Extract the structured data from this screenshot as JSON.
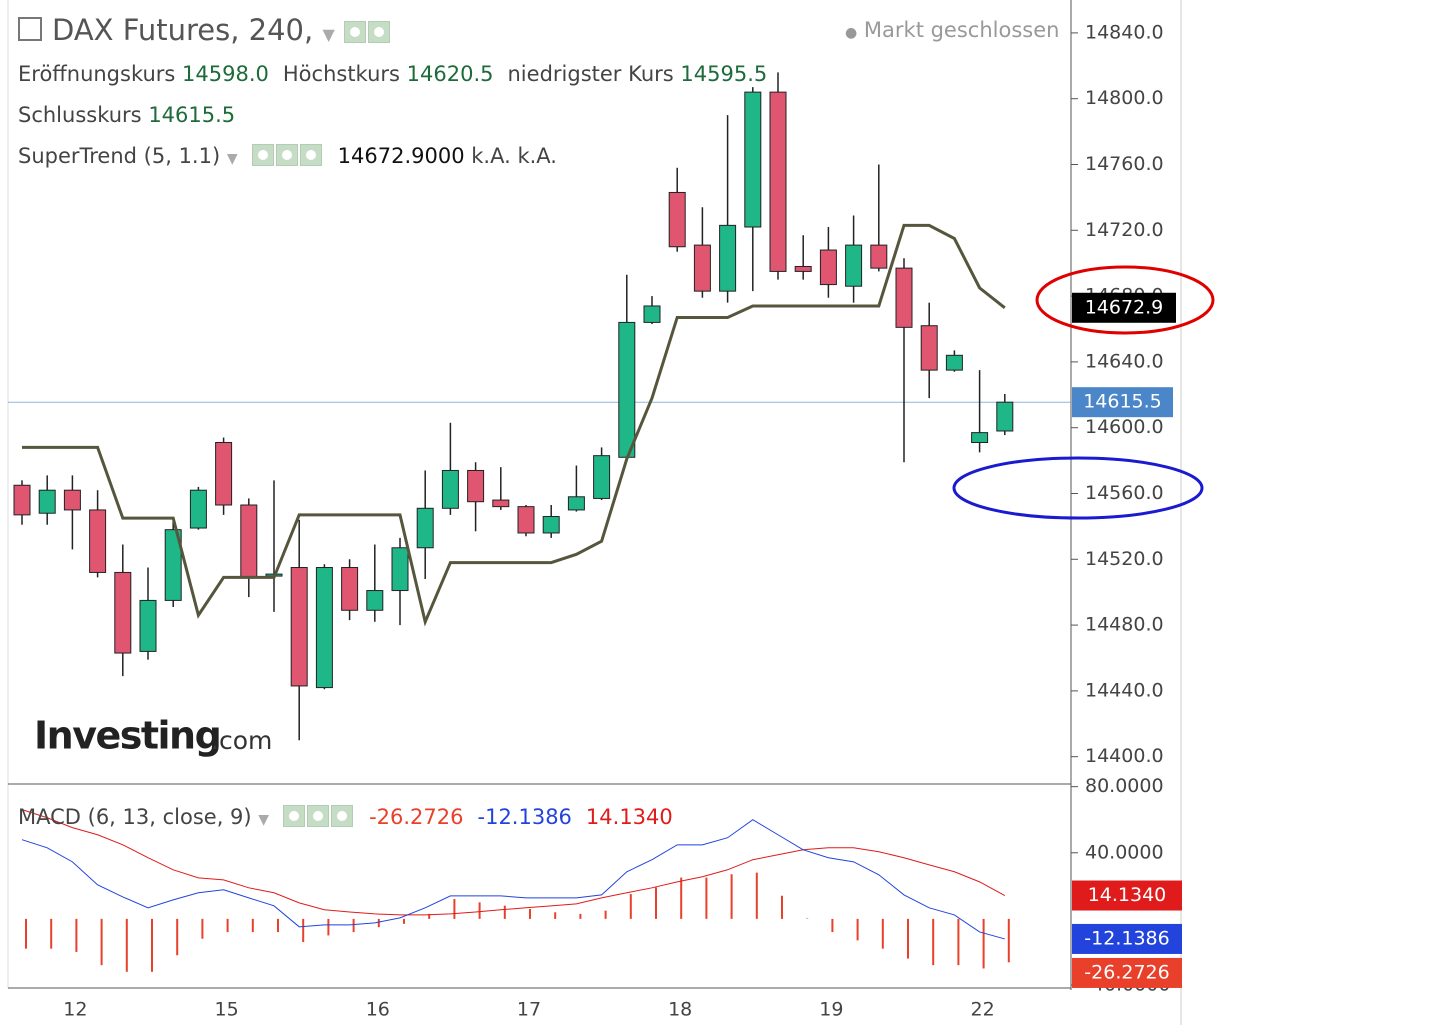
{
  "chart_data": [
    {
      "type": "candlestick",
      "title": "DAX Futures, 240,",
      "status": "Markt geschlossen",
      "ohlc_legend": [
        {
          "label": "Eröffnungskurs",
          "value": "14598.0"
        },
        {
          "label": "Höchstkurs",
          "value": "14620.5"
        },
        {
          "label": "niedrigster Kurs",
          "value": "14595.5"
        },
        {
          "label": "Schlusskurs",
          "value": "14615.5"
        }
      ],
      "categories": [
        null,
        null,
        "12",
        null,
        null,
        null,
        null,
        null,
        "15",
        null,
        null,
        null,
        null,
        null,
        "16",
        null,
        null,
        null,
        null,
        null,
        "17",
        null,
        null,
        null,
        null,
        null,
        "18",
        null,
        null,
        null,
        null,
        null,
        "19",
        null,
        null,
        null,
        null,
        null,
        "22",
        null
      ],
      "open": [
        14565,
        14548,
        14562,
        14550,
        14512,
        14464,
        14495,
        14539,
        14591,
        14553,
        14510,
        14515,
        14442,
        14515,
        14489,
        14501,
        14527,
        14551,
        14574,
        14556,
        14552,
        14536,
        14550,
        14557,
        14582,
        14664,
        14743,
        14711,
        14683,
        14722,
        14804,
        14698,
        14708,
        14686,
        14711,
        14697,
        14662,
        14635,
        14591,
        14598
      ],
      "high": [
        14568,
        14571,
        14571,
        14562,
        14529,
        14515,
        14545,
        14564,
        14594,
        14557,
        14568,
        14544,
        14517,
        14520,
        14529,
        14533,
        14574,
        14603,
        14579,
        14576,
        14553,
        14553,
        14577,
        14588,
        14693,
        14680,
        14758,
        14734,
        14790,
        14807,
        14816,
        14717,
        14722,
        14729,
        14760,
        14703,
        14676,
        14647,
        14635,
        14620.5
      ],
      "low": [
        14541,
        14541,
        14526,
        14509,
        14449,
        14459,
        14491,
        14538,
        14547,
        14497,
        14488,
        14410,
        14441,
        14483,
        14482,
        14480,
        14508,
        14547,
        14537,
        14550,
        14534,
        14533,
        14549,
        14556,
        14580,
        14663,
        14707,
        14679,
        14676,
        14683,
        14690,
        14690,
        14679,
        14676,
        14695,
        14579,
        14618,
        14634,
        14585,
        14595.5
      ],
      "close": [
        14547,
        14562,
        14550,
        14512,
        14463,
        14495,
        14538,
        14562,
        14553,
        14509,
        14511,
        14443,
        14515,
        14489,
        14501,
        14527,
        14551,
        14574,
        14555,
        14552,
        14536,
        14546,
        14558,
        14583,
        14664,
        14674,
        14710,
        14683,
        14723,
        14804,
        14695,
        14695,
        14687,
        14711,
        14697,
        14661,
        14635,
        14644,
        14597,
        14615.5
      ],
      "up_color": "#1fb787",
      "down_color": "#e05570",
      "overlay": {
        "name": "SuperTrend (5, 1.1)",
        "color": "#56563c",
        "values": [
          14588,
          14588,
          14588,
          14588,
          14545,
          14545,
          14545,
          14486,
          14509,
          14509,
          14509,
          14547,
          14547,
          14547,
          14547,
          14547,
          14482,
          14518,
          14518,
          14518,
          14518,
          14518,
          14523,
          14531,
          14581,
          14618,
          14667,
          14667,
          14667,
          14674,
          14674,
          14674,
          14674,
          14674,
          14674,
          14723,
          14723,
          14715,
          14685,
          14672.9
        ],
        "readouts": [
          "14672.9000",
          "k.A.",
          "k.A."
        ],
        "axis_label": {
          "value": 14672.9,
          "label": "14672.9"
        }
      },
      "price_line": {
        "value": 14615.5,
        "label": "14615.5",
        "color": "#4a86c8"
      },
      "ylim": [
        14384,
        14860
      ],
      "yticks": [
        {
          "value": 14840,
          "label": "14840.0"
        },
        {
          "value": 14800,
          "label": "14800.0"
        },
        {
          "value": 14760,
          "label": "14760.0"
        },
        {
          "value": 14720,
          "label": "14720.0"
        },
        {
          "value": 14680,
          "label": "14680.0"
        },
        {
          "value": 14640,
          "label": "14640.0"
        },
        {
          "value": 14600,
          "label": "14600.0"
        },
        {
          "value": 14560,
          "label": "14560.0"
        },
        {
          "value": 14520,
          "label": "14520.0"
        },
        {
          "value": 14480,
          "label": "14480.0"
        },
        {
          "value": 14440,
          "label": "14440.0"
        },
        {
          "value": 14400,
          "label": "14400.0"
        }
      ],
      "watermark": {
        "brand": "Investing",
        "suffix": ".com"
      }
    },
    {
      "type": "macd",
      "title": "MACD (6, 13, close, 9)",
      "histogram": {
        "color": "#e8402a",
        "readout": "-26.2726",
        "values": [
          -18,
          -18,
          -20,
          -28,
          -32,
          -32,
          -22,
          -12,
          -8,
          -8,
          -8,
          -14,
          -10,
          -8,
          -5,
          -3,
          3,
          12,
          10,
          8,
          6,
          4,
          3,
          5,
          15,
          19,
          25,
          25,
          27,
          28,
          14,
          0.3,
          -8,
          -13,
          -18,
          -24,
          -28,
          -28,
          -30,
          -26.2726
        ]
      },
      "macd": {
        "color": "#2244dd",
        "readout": "-12.1386",
        "values": [
          47.9,
          43.0,
          34.5,
          20.6,
          13.3,
          6.7,
          11.5,
          15.8,
          17.6,
          12.7,
          7.9,
          -4.8,
          -3.6,
          -3.6,
          -2.4,
          0.6,
          6.7,
          13.9,
          13.9,
          13.9,
          12.7,
          12.7,
          12.7,
          14.5,
          28.5,
          35.8,
          44.8,
          44.8,
          49.1,
          60.0,
          50.9,
          41.8,
          37.0,
          34.5,
          26.7,
          14.5,
          6.7,
          2.4,
          -7.9,
          -12.1386
        ]
      },
      "signal": {
        "color": "#e01b1b",
        "readout": "14.1340",
        "values": [
          66.1,
          61.2,
          55.2,
          50.9,
          44.8,
          37.0,
          29.7,
          24.8,
          23.6,
          18.8,
          15.8,
          9.7,
          5.5,
          4.2,
          3.0,
          2.4,
          2.4,
          3.0,
          4.2,
          5.5,
          6.7,
          7.9,
          9.1,
          12.7,
          15.8,
          18.8,
          22.4,
          25.5,
          29.7,
          35.8,
          38.8,
          41.8,
          43.0,
          43.0,
          40.6,
          37.0,
          32.7,
          28.5,
          22.4,
          14.134
        ]
      },
      "ylim": [
        -40,
        81
      ],
      "yticks": [
        {
          "value": 80,
          "label": "80.0000"
        },
        {
          "value": 40,
          "label": "40.0000"
        },
        {
          "value": -40,
          "label": "-40.0000"
        }
      ]
    }
  ]
}
